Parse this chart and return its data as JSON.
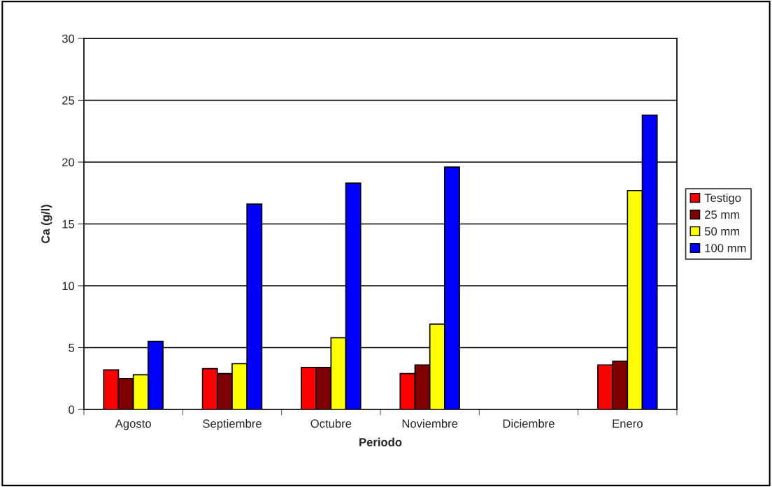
{
  "chart_data": {
    "type": "bar",
    "xlabel": "Periodo",
    "ylabel": "Ca (g/l)",
    "categories": [
      "Agosto",
      "Septiembre",
      "Octubre",
      "Noviembre",
      "Diciembre",
      "Enero"
    ],
    "series": [
      {
        "name": "Testigo",
        "color": "#ff0000",
        "values": [
          3.2,
          3.3,
          3.4,
          2.9,
          null,
          3.6
        ]
      },
      {
        "name": "25 mm",
        "color": "#800000",
        "values": [
          2.5,
          2.9,
          3.4,
          3.6,
          null,
          3.9
        ]
      },
      {
        "name": "50 mm",
        "color": "#ffff00",
        "values": [
          2.8,
          3.7,
          5.8,
          6.9,
          null,
          17.7
        ]
      },
      {
        "name": "100 mm",
        "color": "#0000ff",
        "values": [
          5.5,
          16.6,
          18.3,
          19.6,
          null,
          23.8
        ]
      }
    ],
    "ylim": [
      0,
      30
    ],
    "yticks": [
      0,
      5,
      10,
      15,
      20,
      25,
      30
    ],
    "grid": "y",
    "legend": "right"
  }
}
